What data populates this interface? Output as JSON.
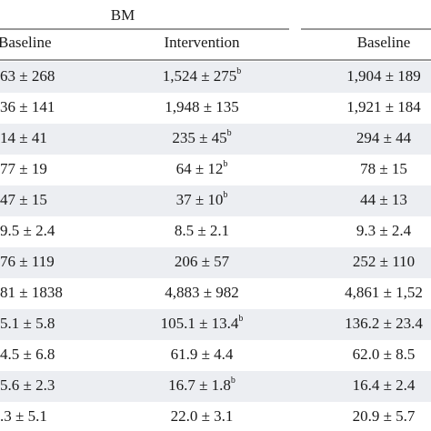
{
  "table": {
    "group_header": "BM",
    "columns": [
      "Baseline",
      "Intervention",
      "Baseline"
    ],
    "rows": [
      [
        "63 ± 268",
        {
          "text": "1,524 ± 275",
          "sup": "b"
        },
        "1,904 ± 189"
      ],
      [
        "36 ± 141",
        "1,948 ± 135",
        "1,921 ± 184"
      ],
      [
        "14 ± 41",
        {
          "text": "235 ± 45",
          "sup": "b"
        },
        "294 ± 44"
      ],
      [
        "77 ± 19",
        {
          "text": "64 ± 12",
          "sup": "b"
        },
        "78 ± 15"
      ],
      [
        "47 ± 15",
        {
          "text": "37 ± 10",
          "sup": "b"
        },
        "44 ± 13"
      ],
      [
        "9.5 ± 2.4",
        "8.5 ± 2.1",
        "9.3 ± 2.4"
      ],
      [
        "76 ± 119",
        "206 ± 57",
        "252 ± 110"
      ],
      [
        "81 ± 1838",
        "4,883 ± 982",
        "4,861 ± 1,52"
      ],
      [
        "5.1 ± 5.8",
        {
          "text": "105.1 ± 13.4",
          "sup": "b"
        },
        "136.2 ± 23.4"
      ],
      [
        "4.5 ± 6.8",
        "61.9 ± 4.4",
        "62.0 ± 8.5"
      ],
      [
        "5.6 ± 2.3",
        {
          "text": "16.7 ± 1.8",
          "sup": "b"
        },
        "16.4 ± 2.4"
      ],
      [
        ".3 ± 5.1",
        "22.0 ± 3.1",
        "20.9 ± 5.7"
      ]
    ]
  }
}
